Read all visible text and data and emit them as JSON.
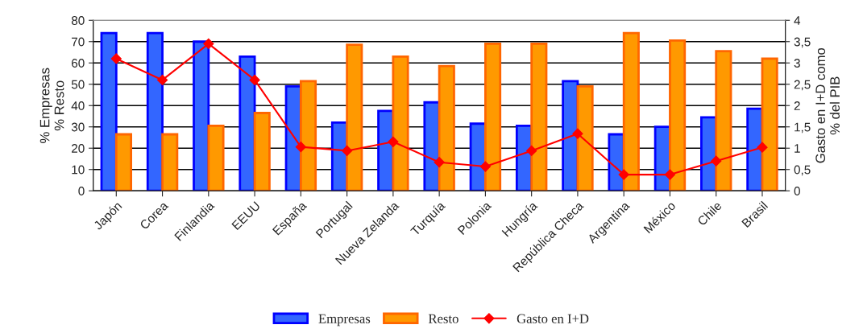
{
  "chart_data": {
    "type": "bar",
    "categories": [
      "Japón",
      "Corea",
      "Finlandia",
      "EEUU",
      "España",
      "Portugal",
      "Nueva Zelanda",
      "Turquía",
      "Polonia",
      "Hungría",
      "República Checa",
      "Argentina",
      "México",
      "Chile",
      "Brasil"
    ],
    "series": [
      {
        "name": "Empresas",
        "color": "#3366ff",
        "values": [
          74,
          74,
          70,
          63,
          49,
          32,
          37.5,
          41.5,
          31.5,
          30.5,
          51.5,
          26.5,
          30,
          34.5,
          38.5
        ]
      },
      {
        "name": "Resto",
        "color": "#ff9900",
        "values": [
          26.5,
          26.5,
          30.5,
          36.5,
          51.5,
          68.5,
          63,
          58.5,
          69,
          69,
          49,
          74,
          70.5,
          65.5,
          62
        ]
      },
      {
        "name": "Gasto en I+D",
        "type": "line",
        "axis": "y2",
        "color": "#ff0000",
        "marker": "diamond",
        "values": [
          3.1,
          2.6,
          3.45,
          2.6,
          1.03,
          0.94,
          1.15,
          0.67,
          0.57,
          0.94,
          1.34,
          0.38,
          0.38,
          0.7,
          1.02
        ]
      }
    ],
    "ylabel": "% Empresas\n% Resto",
    "y2label": "Gasto en I+D como\n% del PIB",
    "ylim": [
      0,
      80
    ],
    "yticks": [
      0,
      10,
      20,
      30,
      40,
      50,
      60,
      70,
      80
    ],
    "y2lim": [
      0,
      4
    ],
    "y2ticks": [
      0,
      {
        "value": 0.5,
        "label": "0,5"
      },
      1,
      {
        "value": 1.5,
        "label": "1,5"
      },
      2,
      {
        "value": 2.5,
        "label": "2,5"
      },
      3,
      {
        "value": 3.5,
        "label": "3,5"
      },
      4
    ],
    "grid": "y",
    "legend": "bottom"
  }
}
